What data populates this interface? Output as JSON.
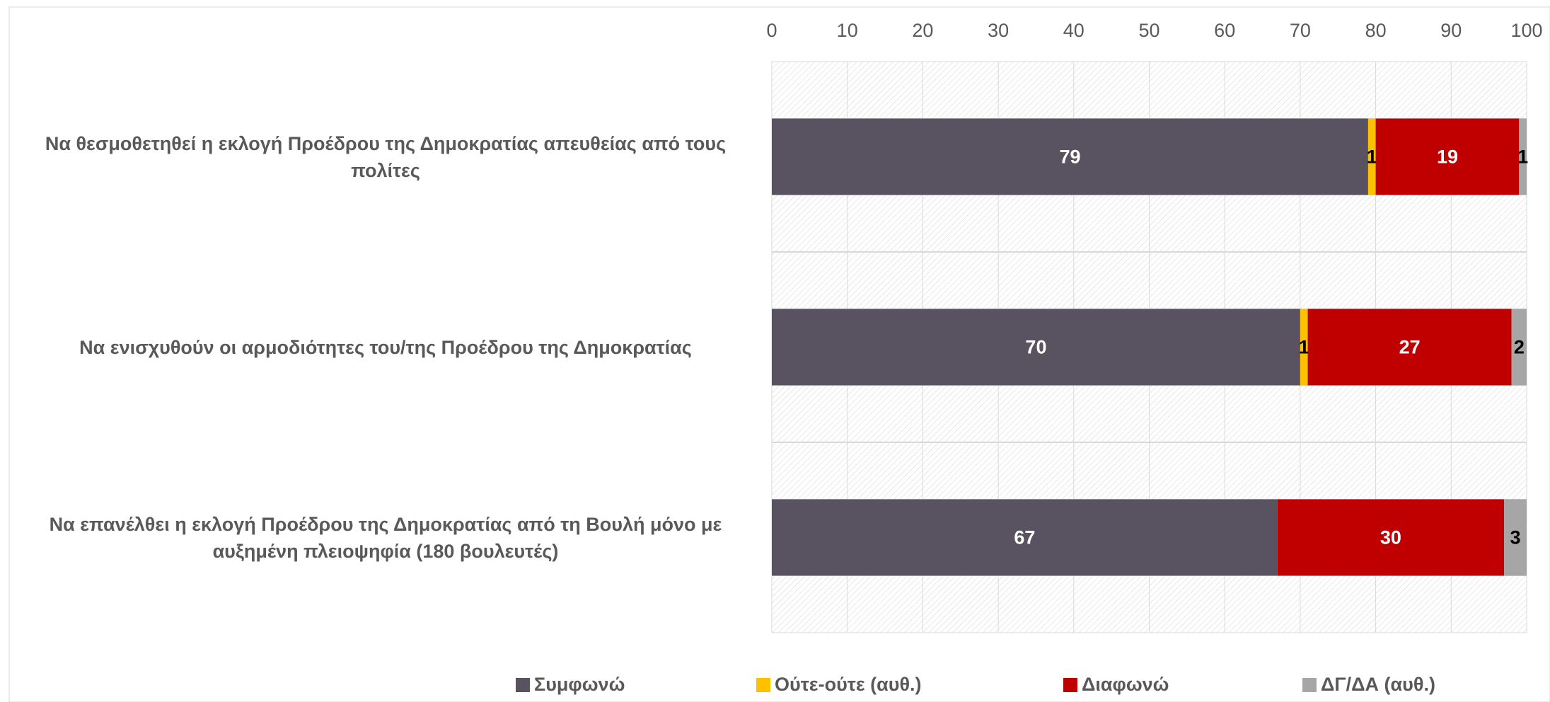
{
  "chart_data": {
    "type": "stacked-barh",
    "categories": [
      "Να θεσμοθετηθεί η εκλογή Προέδρου της Δημοκρατίας απευθείας από τους πολίτες",
      "Να ενισχυθούν οι αρμοδιότητες του/της Προέδρου της Δημοκρατίας",
      "Να επανέλθει η εκλογή Προέδρου της Δημοκρατίας από τη Βουλή μόνο με αυξημένη πλειοψηφία (180 βουλευτές)"
    ],
    "series": [
      {
        "name": "Συμφωνώ",
        "color": "#595260",
        "label_color": "#ffffff",
        "values": [
          79,
          70,
          67
        ]
      },
      {
        "name": "Ούτε-ούτε (αυθ.)",
        "color": "#ffc000",
        "label_color": "#000000",
        "values": [
          1,
          1,
          null
        ]
      },
      {
        "name": "Διαφωνώ",
        "color": "#c00000",
        "label_color": "#ffffff",
        "values": [
          19,
          27,
          30
        ]
      },
      {
        "name": "ΔΓ/ΔΑ (αυθ.)",
        "color": "#a6a6a6",
        "label_color": "#000000",
        "values": [
          1,
          2,
          3
        ]
      }
    ],
    "xlim": [
      0,
      100
    ],
    "xticks": [
      0,
      10,
      20,
      30,
      40,
      50,
      60,
      70,
      80,
      90,
      100
    ],
    "grid": true,
    "legend": "bottom"
  }
}
